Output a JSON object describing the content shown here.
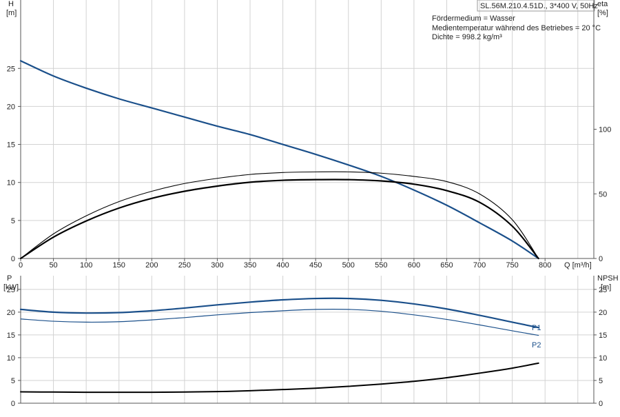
{
  "header": {
    "title": "SL.56M.210.4.51D., 3*400 V, 50Hz",
    "info_lines": [
      "Fördermedium = Wasser",
      "Medientemperatur während des Betriebes = 20 °C",
      "Dichte = 998.2 kg/m³"
    ]
  },
  "colors": {
    "head": "#1a4f8a",
    "eta": "#000000",
    "power": "#1a4f8a",
    "npsh": "#000000"
  },
  "chart_data": [
    {
      "type": "line",
      "panel": "top",
      "x_label": "Q [m³/h]",
      "x_range": [
        0,
        880
      ],
      "x_ticks": [
        0,
        50,
        100,
        150,
        200,
        250,
        300,
        350,
        400,
        450,
        500,
        550,
        600,
        650,
        700,
        750,
        800
      ],
      "left_axis": {
        "label_line1": "H",
        "label_line2": "[m]",
        "range": [
          0,
          34
        ],
        "ticks": [
          0,
          5,
          10,
          15,
          20,
          25
        ]
      },
      "right_axis": {
        "label_line1": "eta",
        "label_line2": "[%]",
        "range": [
          0,
          200
        ],
        "ticks": [
          0,
          50,
          100
        ]
      },
      "grid": true,
      "series": [
        {
          "id": "head",
          "axis": "left",
          "x": [
            0,
            50,
            100,
            150,
            200,
            250,
            300,
            350,
            400,
            450,
            500,
            550,
            600,
            650,
            700,
            750,
            790
          ],
          "y": [
            26.0,
            24.0,
            22.4,
            21.0,
            19.8,
            18.6,
            17.4,
            16.3,
            15.0,
            13.7,
            12.3,
            10.8,
            9.0,
            7.0,
            4.7,
            2.3,
            0.0
          ]
        },
        {
          "id": "eta_thin",
          "axis": "right",
          "x": [
            0,
            50,
            100,
            150,
            200,
            250,
            300,
            350,
            400,
            450,
            500,
            550,
            600,
            650,
            700,
            750,
            790
          ],
          "y": [
            0,
            19,
            33,
            44,
            52,
            58,
            62,
            65,
            66.5,
            67,
            67,
            66,
            63.5,
            59.5,
            50,
            30,
            0
          ]
        },
        {
          "id": "eta_thick",
          "axis": "right",
          "x": [
            0,
            50,
            100,
            150,
            200,
            250,
            300,
            350,
            400,
            450,
            500,
            550,
            600,
            650,
            700,
            750,
            790
          ],
          "y": [
            0,
            16.5,
            29,
            39,
            46.5,
            52,
            56,
            59,
            60.5,
            61,
            61,
            60,
            57.5,
            52.5,
            43.5,
            25,
            0
          ]
        }
      ]
    },
    {
      "type": "line",
      "panel": "bottom",
      "x_range": [
        0,
        880
      ],
      "left_axis": {
        "label_line1": "P",
        "label_line2": "[kW]",
        "range": [
          0,
          28
        ],
        "ticks": [
          0,
          5,
          10,
          15,
          20,
          25
        ]
      },
      "right_axis": {
        "label_line1": "NPSH",
        "label_line2": "[m]",
        "range": [
          0,
          28
        ],
        "ticks": [
          0,
          5,
          10,
          15,
          20,
          25
        ]
      },
      "grid": true,
      "series": [
        {
          "id": "p1",
          "name": "P1",
          "axis": "left",
          "x": [
            0,
            50,
            100,
            150,
            200,
            250,
            300,
            350,
            400,
            450,
            500,
            550,
            600,
            650,
            700,
            750,
            790
          ],
          "y": [
            20.6,
            20.0,
            19.8,
            19.9,
            20.3,
            20.9,
            21.6,
            22.2,
            22.7,
            23.0,
            23.0,
            22.6,
            21.8,
            20.7,
            19.3,
            17.8,
            16.6
          ]
        },
        {
          "id": "p2",
          "name": "P2",
          "axis": "left",
          "x": [
            0,
            50,
            100,
            150,
            200,
            250,
            300,
            350,
            400,
            450,
            500,
            550,
            600,
            650,
            700,
            750,
            790
          ],
          "y": [
            18.5,
            18.0,
            17.8,
            17.9,
            18.3,
            18.8,
            19.4,
            19.9,
            20.3,
            20.6,
            20.6,
            20.2,
            19.4,
            18.4,
            17.2,
            15.9,
            14.9
          ]
        },
        {
          "id": "npsh",
          "axis": "right",
          "x": [
            0,
            50,
            100,
            150,
            200,
            250,
            300,
            350,
            400,
            450,
            500,
            550,
            600,
            650,
            700,
            750,
            790
          ],
          "y": [
            2.5,
            2.45,
            2.4,
            2.4,
            2.4,
            2.45,
            2.55,
            2.75,
            3.0,
            3.3,
            3.7,
            4.2,
            4.8,
            5.6,
            6.6,
            7.7,
            8.8
          ]
        }
      ]
    }
  ]
}
